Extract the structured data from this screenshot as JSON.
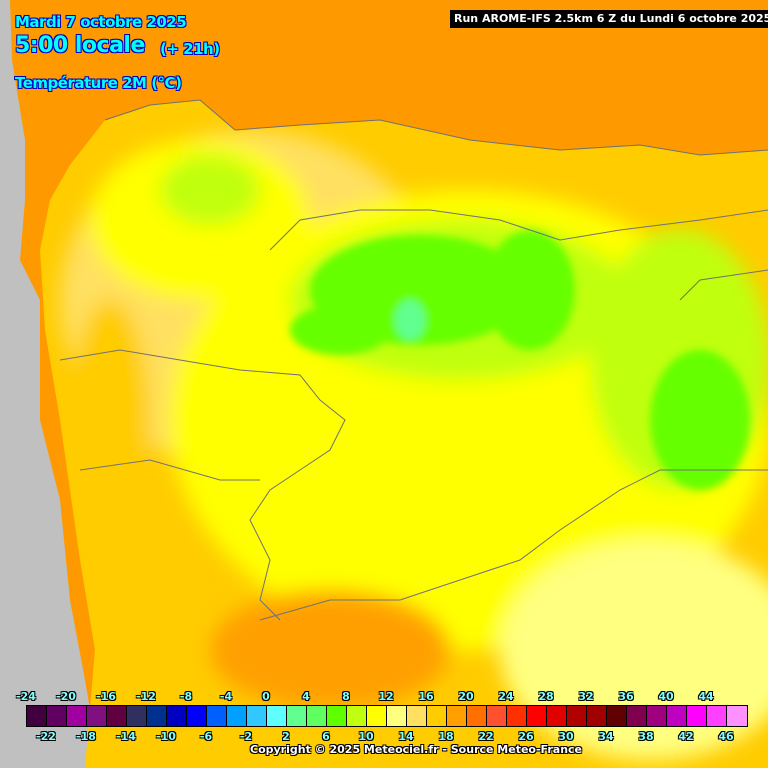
{
  "header": {
    "date": "Mardi 7 octobre 2025",
    "time": "5:00 locale",
    "lead": "(+ 21h)",
    "variable": "Température 2M (°C)",
    "run": "Run AROME-IFS 2.5km 6 Z du Lundi 6 octobre 2025"
  },
  "legend": {
    "colors": [
      "#400040",
      "#600060",
      "#a000a0",
      "#801080",
      "#600040",
      "#303060",
      "#003090",
      "#0000c0",
      "#0000ff",
      "#0060ff",
      "#00a0ff",
      "#30c8ff",
      "#60ffff",
      "#60ff90",
      "#60ff60",
      "#60ff00",
      "#c0ff10",
      "#ffff00",
      "#ffff80",
      "#ffe060",
      "#ffcc00",
      "#ffa000",
      "#ff7000",
      "#ff5030",
      "#ff3000",
      "#ff0000",
      "#e00000",
      "#b00000",
      "#a00000",
      "#600000",
      "#800050",
      "#a00080",
      "#c000c0",
      "#ff00ff",
      "#ff40ff",
      "#ff90ff"
    ],
    "top_labels": [
      "-24",
      "-20",
      "-16",
      "-12",
      "-8",
      "-4",
      "0",
      "4",
      "8",
      "12",
      "16",
      "20",
      "24",
      "28",
      "32",
      "36",
      "40",
      "44"
    ],
    "bottom_labels": [
      "-22",
      "-18",
      "-14",
      "-10",
      "-6",
      "-2",
      "2",
      "6",
      "10",
      "14",
      "18",
      "22",
      "26",
      "30",
      "34",
      "38",
      "42",
      "46"
    ]
  },
  "colors": {
    "sea": "#ff9900",
    "outside": "#c0c0c0",
    "land_base": "#ffcc00",
    "mild": "#ffff00",
    "cool": "#66ff00",
    "cold": "#30ff90",
    "warm": "#ffa000",
    "light": "#ffff80"
  },
  "footer": {
    "copyright": "Copyright © 2025 Meteociel.fr - Source Meteo-France"
  }
}
